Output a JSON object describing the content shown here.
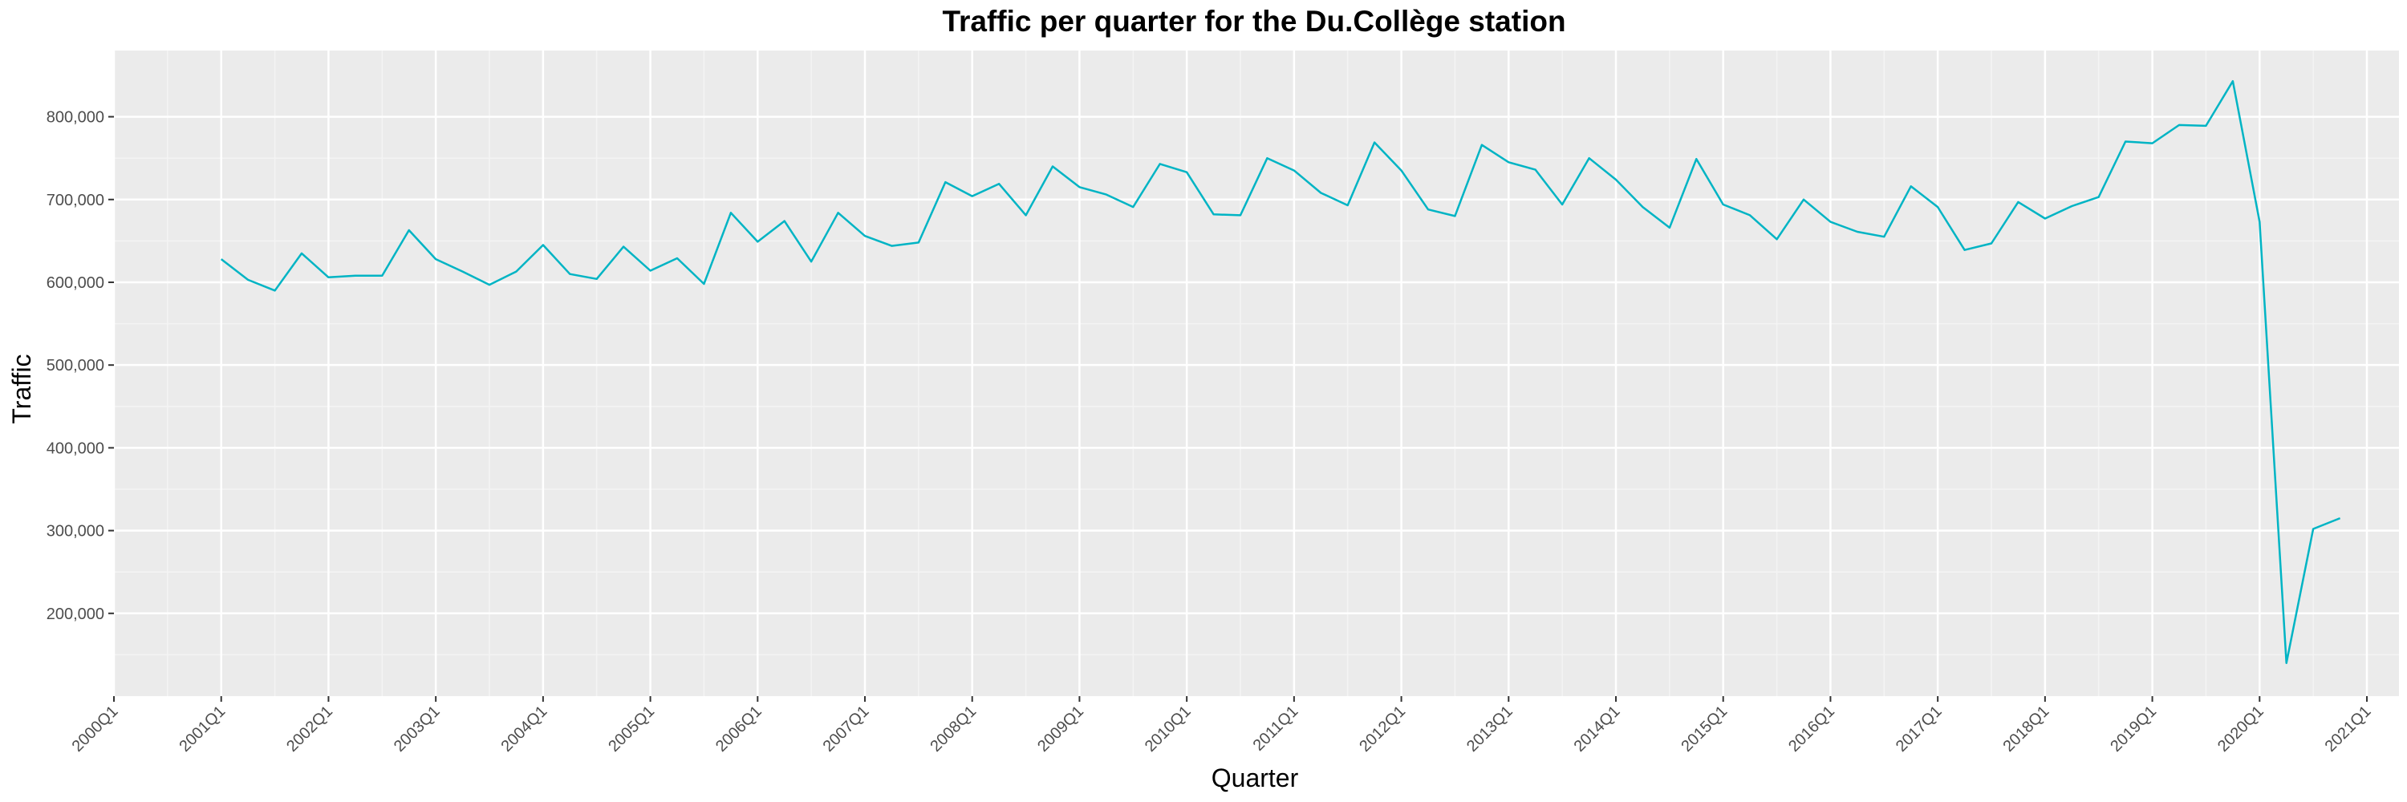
{
  "chart_data": {
    "type": "line",
    "title": "Traffic per quarter for the Du.Collège station",
    "xlabel": "Quarter",
    "ylabel": "Traffic",
    "x_ticks": [
      "2000Q1",
      "2001Q1",
      "2002Q1",
      "2003Q1",
      "2004Q1",
      "2005Q1",
      "2006Q1",
      "2007Q1",
      "2008Q1",
      "2009Q1",
      "2010Q1",
      "2011Q1",
      "2012Q1",
      "2013Q1",
      "2014Q1",
      "2015Q1",
      "2016Q1",
      "2017Q1",
      "2018Q1",
      "2019Q1",
      "2020Q1",
      "2021Q1"
    ],
    "y_ticks": [
      200000,
      300000,
      400000,
      500000,
      600000,
      700000,
      800000
    ],
    "y_tick_labels": [
      "200,000",
      "300,000",
      "400,000",
      "500,000",
      "600,000",
      "700,000",
      "800,000"
    ],
    "ylim": [
      100000,
      880000
    ],
    "xlim": [
      "2000Q1",
      "2021Q1"
    ],
    "grid": true,
    "line_color": "#00b4c4",
    "panel_background": "#ebebeb",
    "series": [
      {
        "x": [
          "2001Q1",
          "2001Q2",
          "2001Q3",
          "2001Q4",
          "2002Q1",
          "2002Q2",
          "2002Q3",
          "2002Q4",
          "2003Q1",
          "2003Q2",
          "2003Q3",
          "2003Q4",
          "2004Q1",
          "2004Q2",
          "2004Q3",
          "2004Q4",
          "2005Q1",
          "2005Q2",
          "2005Q3",
          "2005Q4",
          "2006Q1",
          "2006Q2",
          "2006Q3",
          "2006Q4",
          "2007Q1",
          "2007Q2",
          "2007Q3",
          "2007Q4",
          "2008Q1",
          "2008Q2",
          "2008Q3",
          "2008Q4",
          "2009Q1",
          "2009Q2",
          "2009Q3",
          "2009Q4",
          "2010Q1",
          "2010Q2",
          "2010Q3",
          "2010Q4",
          "2011Q1",
          "2011Q2",
          "2011Q3",
          "2011Q4",
          "2012Q1",
          "2012Q2",
          "2012Q3",
          "2012Q4",
          "2013Q1",
          "2013Q2",
          "2013Q3",
          "2013Q4",
          "2014Q1",
          "2014Q2",
          "2014Q3",
          "2014Q4",
          "2015Q1",
          "2015Q2",
          "2015Q3",
          "2015Q4",
          "2016Q1",
          "2016Q2",
          "2016Q3",
          "2016Q4",
          "2017Q1",
          "2017Q2",
          "2017Q3",
          "2017Q4",
          "2018Q1",
          "2018Q2",
          "2018Q3",
          "2018Q4",
          "2019Q1",
          "2019Q2",
          "2019Q3",
          "2019Q4",
          "2020Q1",
          "2020Q2",
          "2020Q3",
          "2020Q4"
        ],
        "values": [
          628000,
          603000,
          590000,
          635000,
          606000,
          608000,
          608000,
          663000,
          628000,
          613000,
          597000,
          613000,
          645000,
          610000,
          604000,
          643000,
          614000,
          629000,
          598000,
          684000,
          649000,
          674000,
          625000,
          684000,
          656000,
          644000,
          648000,
          721000,
          704000,
          719000,
          681000,
          740000,
          715000,
          706000,
          691000,
          743000,
          733000,
          682000,
          681000,
          750000,
          735000,
          708000,
          693000,
          769000,
          735000,
          688000,
          680000,
          766000,
          745000,
          736000,
          694000,
          750000,
          724000,
          691000,
          666000,
          749000,
          694000,
          681000,
          652000,
          700000,
          673000,
          661000,
          655000,
          716000,
          691000,
          639000,
          647000,
          697000,
          677000,
          692000,
          703000,
          770000,
          768000,
          790000,
          789000,
          843000,
          673000,
          140000,
          302000,
          315000
        ]
      }
    ]
  }
}
